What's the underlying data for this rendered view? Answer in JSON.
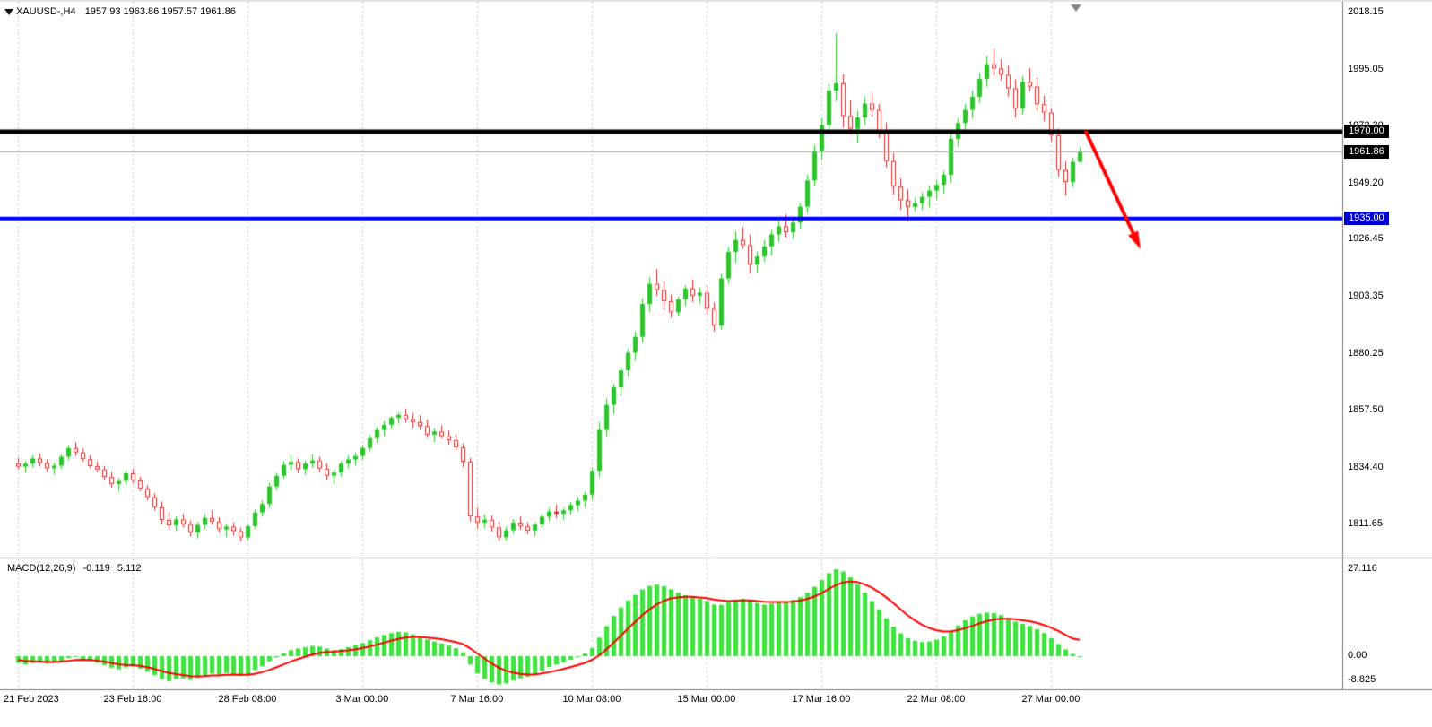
{
  "header": {
    "symbol": "XAUUSD-,H4",
    "ohlc": "1957.93 1963.86 1957.57 1961.86"
  },
  "chart_data": {
    "type": "candlestick",
    "symbol": "XAUUSD-",
    "timeframe": "H4",
    "current_price": 1961.86,
    "last_candle": {
      "open": 1957.93,
      "high": 1963.86,
      "low": 1957.57,
      "close": 1961.86
    },
    "shift_marker_index": 147.5,
    "price_axis": {
      "min": 1798.2,
      "max": 2022.5,
      "ticks": [
        {
          "label": "2018.15",
          "value": 2018.15
        },
        {
          "label": "1995.05",
          "value": 1995.05
        },
        {
          "label": "1972.30",
          "value": 1972.3
        },
        {
          "label": "1949.20",
          "value": 1949.2
        },
        {
          "label": "1926.45",
          "value": 1926.45
        },
        {
          "label": "1903.35",
          "value": 1903.35
        },
        {
          "label": "1880.25",
          "value": 1880.25
        },
        {
          "label": "1857.50",
          "value": 1857.5
        },
        {
          "label": "1834.40",
          "value": 1834.4
        },
        {
          "label": "1811.65",
          "value": 1811.65
        }
      ],
      "badges": [
        {
          "label": "1970.00",
          "value": 1970.0,
          "bg": "#000000"
        },
        {
          "label": "1961.86",
          "value": 1961.86,
          "bg": "#000000"
        },
        {
          "label": "1935.00",
          "value": 1935.0,
          "bg": "#0000CD"
        }
      ]
    },
    "horizontal_lines": [
      {
        "price": 1961.86,
        "color": "#A8A8A8",
        "width": 1,
        "role": "current-price-line"
      },
      {
        "price": 1970.0,
        "color": "#000000",
        "width": 5,
        "role": "resistance-line"
      },
      {
        "price": 1935.0,
        "color": "#0000FF",
        "width": 4,
        "role": "support-line"
      }
    ],
    "trend_arrow": {
      "from": {
        "index": 148.8,
        "price": 1970.5
      },
      "to": {
        "index": 155.8,
        "price": 1927.0
      },
      "color": "#FF0000",
      "width": 4
    },
    "x_axis": {
      "labels": [
        {
          "text": "21 Feb 2023",
          "index": 0
        },
        {
          "text": "23 Feb 16:00",
          "index": 16
        },
        {
          "text": "28 Feb 08:00",
          "index": 32
        },
        {
          "text": "3 Mar 00:00",
          "index": 48
        },
        {
          "text": "7 Mar 16:00",
          "index": 64
        },
        {
          "text": "10 Mar 08:00",
          "index": 80
        },
        {
          "text": "15 Mar 00:00",
          "index": 96
        },
        {
          "text": "17 Mar 16:00",
          "index": 112
        },
        {
          "text": "22 Mar 08:00",
          "index": 128
        },
        {
          "text": "27 Mar 00:00",
          "index": 144
        }
      ]
    },
    "colors": {
      "bull": "#2FC42F",
      "bear_border": "#E03232",
      "bear_fill": "#FFFFFF",
      "grid": "#C8C8C8",
      "macd_bar": "#3FE23F",
      "macd_signal": "#FF0000"
    },
    "candles": [
      [
        1836.2,
        1838.5,
        1833.8,
        1834.9
      ],
      [
        1834.9,
        1837.2,
        1832.5,
        1836.1
      ],
      [
        1836.1,
        1839.4,
        1834.6,
        1838.2
      ],
      [
        1838.2,
        1840.1,
        1835.0,
        1836.4
      ],
      [
        1836.4,
        1837.8,
        1832.9,
        1834.2
      ],
      [
        1834.2,
        1836.5,
        1831.7,
        1835.3
      ],
      [
        1835.3,
        1839.8,
        1834.1,
        1838.9
      ],
      [
        1838.9,
        1843.6,
        1837.5,
        1842.4
      ],
      [
        1842.4,
        1844.8,
        1839.2,
        1840.6
      ],
      [
        1840.6,
        1842.3,
        1836.8,
        1837.9
      ],
      [
        1837.9,
        1839.5,
        1834.3,
        1835.1
      ],
      [
        1835.1,
        1837.0,
        1832.6,
        1833.8
      ],
      [
        1833.8,
        1835.2,
        1829.4,
        1830.7
      ],
      [
        1830.7,
        1832.8,
        1826.5,
        1827.9
      ],
      [
        1827.9,
        1830.3,
        1824.8,
        1829.1
      ],
      [
        1829.1,
        1833.4,
        1827.6,
        1832.2
      ],
      [
        1832.2,
        1833.9,
        1828.1,
        1829.3
      ],
      [
        1829.3,
        1830.8,
        1824.9,
        1826.0
      ],
      [
        1826.0,
        1827.5,
        1821.3,
        1822.6
      ],
      [
        1822.6,
        1824.1,
        1817.2,
        1818.5
      ],
      [
        1818.5,
        1820.9,
        1811.8,
        1813.4
      ],
      [
        1813.4,
        1816.7,
        1809.5,
        1811.2
      ],
      [
        1811.2,
        1814.8,
        1808.9,
        1813.6
      ],
      [
        1813.6,
        1815.9,
        1810.4,
        1811.7
      ],
      [
        1811.7,
        1813.2,
        1806.8,
        1808.3
      ],
      [
        1808.3,
        1812.6,
        1805.9,
        1811.4
      ],
      [
        1811.4,
        1815.8,
        1809.7,
        1814.2
      ],
      [
        1814.2,
        1817.3,
        1811.6,
        1812.8
      ],
      [
        1812.8,
        1814.5,
        1808.2,
        1809.6
      ],
      [
        1809.6,
        1811.9,
        1806.4,
        1810.7
      ],
      [
        1810.7,
        1812.4,
        1807.1,
        1808.9
      ],
      [
        1808.9,
        1810.2,
        1804.8,
        1806.3
      ],
      [
        1806.3,
        1811.7,
        1805.2,
        1810.9
      ],
      [
        1810.9,
        1817.6,
        1809.8,
        1816.4
      ],
      [
        1816.4,
        1821.3,
        1814.7,
        1819.8
      ],
      [
        1819.8,
        1828.5,
        1818.2,
        1826.9
      ],
      [
        1826.9,
        1832.4,
        1825.3,
        1831.2
      ],
      [
        1831.2,
        1837.1,
        1829.8,
        1835.6
      ],
      [
        1835.6,
        1839.7,
        1833.4,
        1836.8
      ],
      [
        1836.8,
        1838.2,
        1832.1,
        1833.9
      ],
      [
        1833.9,
        1837.5,
        1831.6,
        1836.2
      ],
      [
        1836.2,
        1839.8,
        1834.5,
        1837.4
      ],
      [
        1837.4,
        1838.9,
        1832.7,
        1834.1
      ],
      [
        1834.1,
        1836.3,
        1829.5,
        1831.2
      ],
      [
        1831.2,
        1833.8,
        1827.9,
        1832.6
      ],
      [
        1832.6,
        1837.2,
        1830.8,
        1836.1
      ],
      [
        1836.1,
        1839.4,
        1834.2,
        1837.8
      ],
      [
        1837.8,
        1840.6,
        1835.3,
        1839.2
      ],
      [
        1839.2,
        1843.7,
        1837.6,
        1842.5
      ],
      [
        1842.5,
        1847.8,
        1841.3,
        1846.4
      ],
      [
        1846.4,
        1850.9,
        1844.6,
        1849.7
      ],
      [
        1849.7,
        1853.2,
        1847.1,
        1851.8
      ],
      [
        1851.8,
        1855.4,
        1849.9,
        1854.6
      ],
      [
        1854.6,
        1856.9,
        1852.3,
        1855.8
      ],
      [
        1855.8,
        1858.3,
        1852.7,
        1854.1
      ],
      [
        1854.1,
        1856.6,
        1850.4,
        1852.9
      ],
      [
        1852.9,
        1855.7,
        1849.8,
        1851.3
      ],
      [
        1851.3,
        1853.9,
        1846.5,
        1847.8
      ],
      [
        1847.8,
        1850.2,
        1844.9,
        1849.1
      ],
      [
        1849.1,
        1851.6,
        1846.3,
        1847.2
      ],
      [
        1847.2,
        1849.5,
        1843.8,
        1845.6
      ],
      [
        1845.6,
        1847.9,
        1841.2,
        1842.7
      ],
      [
        1842.7,
        1844.3,
        1834.6,
        1836.9
      ],
      [
        1836.9,
        1838.4,
        1812.7,
        1814.8
      ],
      [
        1814.8,
        1818.3,
        1809.9,
        1812.4
      ],
      [
        1812.4,
        1815.7,
        1810.2,
        1813.5
      ],
      [
        1813.5,
        1815.2,
        1808.7,
        1810.3
      ],
      [
        1810.3,
        1812.8,
        1804.9,
        1806.4
      ],
      [
        1806.4,
        1810.6,
        1805.1,
        1809.2
      ],
      [
        1809.2,
        1813.7,
        1807.8,
        1812.3
      ],
      [
        1812.3,
        1814.9,
        1809.4,
        1810.8
      ],
      [
        1810.8,
        1812.5,
        1807.6,
        1809.1
      ],
      [
        1809.1,
        1812.4,
        1806.9,
        1811.6
      ],
      [
        1811.6,
        1815.8,
        1810.2,
        1814.7
      ],
      [
        1814.7,
        1818.3,
        1812.9,
        1816.8
      ],
      [
        1816.8,
        1819.6,
        1814.1,
        1815.9
      ],
      [
        1815.9,
        1818.2,
        1813.4,
        1817.3
      ],
      [
        1817.3,
        1820.7,
        1815.6,
        1819.4
      ],
      [
        1819.4,
        1822.6,
        1816.8,
        1821.2
      ],
      [
        1821.2,
        1824.9,
        1818.3,
        1823.6
      ],
      [
        1823.6,
        1834.7,
        1821.4,
        1833.2
      ],
      [
        1833.2,
        1852.8,
        1830.6,
        1849.7
      ],
      [
        1849.7,
        1862.4,
        1846.9,
        1859.8
      ],
      [
        1859.8,
        1868.3,
        1856.2,
        1866.9
      ],
      [
        1866.9,
        1875.3,
        1863.4,
        1873.8
      ],
      [
        1873.8,
        1882.6,
        1871.2,
        1880.9
      ],
      [
        1880.9,
        1889.4,
        1877.6,
        1887.3
      ],
      [
        1887.3,
        1902.8,
        1885.1,
        1900.6
      ],
      [
        1900.6,
        1911.3,
        1897.4,
        1908.7
      ],
      [
        1908.7,
        1914.6,
        1903.8,
        1906.2
      ],
      [
        1906.2,
        1909.8,
        1898.4,
        1901.7
      ],
      [
        1901.7,
        1904.3,
        1894.9,
        1897.2
      ],
      [
        1897.2,
        1903.6,
        1895.8,
        1902.4
      ],
      [
        1902.4,
        1908.1,
        1899.7,
        1906.8
      ],
      [
        1906.8,
        1910.4,
        1901.3,
        1903.9
      ],
      [
        1903.9,
        1907.2,
        1900.6,
        1905.1
      ],
      [
        1905.1,
        1907.8,
        1896.3,
        1898.6
      ],
      [
        1898.6,
        1901.2,
        1889.4,
        1891.8
      ],
      [
        1891.8,
        1912.6,
        1890.3,
        1910.9
      ],
      [
        1910.9,
        1923.4,
        1908.7,
        1921.6
      ],
      [
        1921.6,
        1929.8,
        1917.2,
        1926.4
      ],
      [
        1926.4,
        1931.7,
        1922.8,
        1924.3
      ],
      [
        1924.3,
        1928.6,
        1912.9,
        1916.4
      ],
      [
        1916.4,
        1921.8,
        1913.2,
        1919.7
      ],
      [
        1919.7,
        1926.3,
        1917.5,
        1923.8
      ],
      [
        1923.8,
        1930.4,
        1920.1,
        1928.6
      ],
      [
        1928.6,
        1934.2,
        1925.7,
        1931.9
      ],
      [
        1931.9,
        1936.8,
        1927.4,
        1929.5
      ],
      [
        1929.5,
        1935.7,
        1926.8,
        1933.4
      ],
      [
        1933.4,
        1941.2,
        1930.6,
        1939.8
      ],
      [
        1939.8,
        1952.6,
        1937.3,
        1950.4
      ],
      [
        1950.4,
        1964.8,
        1947.9,
        1962.3
      ],
      [
        1962.3,
        1975.6,
        1958.7,
        1972.8
      ],
      [
        1972.8,
        1989.3,
        1969.4,
        1986.7
      ],
      [
        1986.7,
        2009.8,
        1982.4,
        1989.6
      ],
      [
        1989.6,
        1993.2,
        1971.8,
        1976.4
      ],
      [
        1976.4,
        1982.7,
        1968.9,
        1971.3
      ],
      [
        1971.3,
        1978.6,
        1965.4,
        1975.8
      ],
      [
        1975.8,
        1984.3,
        1972.6,
        1981.4
      ],
      [
        1981.4,
        1985.7,
        1976.2,
        1978.9
      ],
      [
        1978.9,
        1981.2,
        1967.5,
        1970.3
      ],
      [
        1970.3,
        1973.8,
        1955.6,
        1958.2
      ],
      [
        1958.2,
        1961.4,
        1944.7,
        1947.9
      ],
      [
        1947.9,
        1951.3,
        1938.6,
        1942.4
      ],
      [
        1942.4,
        1946.8,
        1934.0,
        1939.7
      ],
      [
        1939.7,
        1943.5,
        1937.8,
        1941.2
      ],
      [
        1941.2,
        1945.6,
        1938.4,
        1943.8
      ],
      [
        1943.8,
        1948.2,
        1939.6,
        1946.3
      ],
      [
        1946.3,
        1950.7,
        1942.9,
        1948.6
      ],
      [
        1948.6,
        1954.3,
        1945.2,
        1952.7
      ],
      [
        1952.7,
        1969.8,
        1949.4,
        1967.2
      ],
      [
        1967.2,
        1975.4,
        1963.8,
        1973.6
      ],
      [
        1973.6,
        1981.2,
        1970.4,
        1978.9
      ],
      [
        1978.9,
        1986.7,
        1975.3,
        1984.2
      ],
      [
        1984.2,
        1993.8,
        1981.6,
        1991.4
      ],
      [
        1991.4,
        2000.6,
        1988.2,
        1997.3
      ],
      [
        1997.3,
        2003.2,
        1992.8,
        1995.6
      ],
      [
        1995.6,
        1999.4,
        1990.7,
        1993.1
      ],
      [
        1993.1,
        1996.8,
        1984.3,
        1987.6
      ],
      [
        1987.6,
        1991.2,
        1975.8,
        1979.4
      ],
      [
        1979.4,
        1992.6,
        1976.9,
        1990.2
      ],
      [
        1990.2,
        1995.7,
        1986.4,
        1988.3
      ],
      [
        1988.3,
        1991.8,
        1978.6,
        1981.2
      ],
      [
        1981.2,
        1984.6,
        1974.3,
        1977.8
      ],
      [
        1977.8,
        1979.4,
        1966.2,
        1968.7
      ],
      [
        1968.7,
        1971.3,
        1951.8,
        1954.6
      ],
      [
        1954.6,
        1958.2,
        1944.3,
        1949.8
      ],
      [
        1949.8,
        1959.7,
        1947.6,
        1957.9
      ],
      [
        1957.93,
        1963.86,
        1957.57,
        1961.86
      ]
    ],
    "macd": {
      "name": "MACD(12,26,9)",
      "main_value": "-0.119",
      "signal_value": "5.112",
      "axis_ticks": [
        {
          "label": "27.116",
          "value": 27.116
        },
        {
          "label": "0.00",
          "value": 0
        },
        {
          "label": "-8.825",
          "value": -8.825
        }
      ],
      "histogram": [
        -2.1,
        -2.6,
        -2.2,
        -1.8,
        -2.3,
        -2.0,
        -1.4,
        -0.6,
        -0.2,
        -0.8,
        -1.5,
        -2.1,
        -2.8,
        -3.6,
        -4.1,
        -3.5,
        -3.2,
        -3.9,
        -4.8,
        -5.9,
        -7.2,
        -7.8,
        -7.1,
        -6.9,
        -7.4,
        -6.8,
        -5.9,
        -5.4,
        -5.8,
        -5.2,
        -5.5,
        -6.1,
        -5.6,
        -4.3,
        -3.1,
        -1.6,
        -0.4,
        0.9,
        1.9,
        2.4,
        2.8,
        3.2,
        3.0,
        2.4,
        1.9,
        2.2,
        2.8,
        3.4,
        4.1,
        5.0,
        5.9,
        6.6,
        7.2,
        7.6,
        7.4,
        6.8,
        6.1,
        5.2,
        4.6,
        4.0,
        3.3,
        2.5,
        1.2,
        -2.6,
        -5.4,
        -7.1,
        -8.2,
        -8.825,
        -8.5,
        -7.6,
        -6.9,
        -6.4,
        -5.6,
        -4.5,
        -3.4,
        -2.6,
        -1.9,
        -1.1,
        -0.3,
        0.8,
        2.6,
        5.8,
        9.4,
        12.6,
        15.2,
        17.4,
        19.1,
        20.8,
        21.9,
        22.3,
        21.8,
        20.9,
        19.8,
        19.0,
        18.4,
        17.9,
        17.2,
        16.1,
        16.0,
        16.8,
        17.6,
        17.9,
        17.4,
        16.6,
        16.1,
        16.4,
        16.9,
        17.1,
        17.6,
        18.4,
        19.8,
        21.6,
        23.8,
        25.9,
        27.116,
        26.4,
        24.6,
        22.3,
        19.8,
        17.2,
        14.6,
        11.8,
        9.2,
        7.1,
        5.6,
        4.8,
        4.4,
        4.6,
        5.2,
        6.2,
        7.8,
        9.6,
        11.2,
        12.4,
        13.2,
        13.6,
        13.4,
        12.8,
        11.9,
        10.8,
        10.1,
        9.4,
        8.4,
        7.2,
        5.6,
        3.8,
        2.1,
        0.7,
        -0.119
      ],
      "signal": [
        -1.2,
        -1.5,
        -1.6,
        -1.7,
        -1.8,
        -1.8,
        -1.7,
        -1.5,
        -1.2,
        -1.1,
        -1.2,
        -1.4,
        -1.7,
        -2.1,
        -2.5,
        -2.7,
        -2.8,
        -3.0,
        -3.4,
        -3.9,
        -4.6,
        -5.2,
        -5.6,
        -5.9,
        -6.2,
        -6.3,
        -6.2,
        -6.0,
        -6.0,
        -5.8,
        -5.7,
        -5.8,
        -5.8,
        -5.5,
        -5.0,
        -4.3,
        -3.5,
        -2.6,
        -1.7,
        -0.9,
        -0.2,
        0.5,
        1.0,
        1.3,
        1.4,
        1.6,
        1.8,
        2.1,
        2.5,
        3.0,
        3.6,
        4.2,
        4.8,
        5.4,
        5.8,
        6.0,
        6.0,
        5.8,
        5.6,
        5.3,
        4.9,
        4.4,
        3.8,
        2.5,
        0.9,
        -0.7,
        -2.2,
        -3.5,
        -4.5,
        -5.1,
        -5.5,
        -5.7,
        -5.7,
        -5.4,
        -5.0,
        -4.5,
        -4.0,
        -3.4,
        -2.8,
        -2.1,
        -1.2,
        0.2,
        2.0,
        4.1,
        6.3,
        8.5,
        10.6,
        12.7,
        14.5,
        16.1,
        17.2,
        18.0,
        18.3,
        18.5,
        18.5,
        18.3,
        18.1,
        17.7,
        17.4,
        17.2,
        17.3,
        17.4,
        17.4,
        17.2,
        17.0,
        16.9,
        16.9,
        16.9,
        17.0,
        17.3,
        17.8,
        18.6,
        19.6,
        20.9,
        22.1,
        23.0,
        23.3,
        23.1,
        22.4,
        21.4,
        20.0,
        18.4,
        16.6,
        14.7,
        12.8,
        11.2,
        9.8,
        8.8,
        8.1,
        7.7,
        7.7,
        8.1,
        8.7,
        9.4,
        10.2,
        10.9,
        11.4,
        11.7,
        11.7,
        11.5,
        11.2,
        10.9,
        10.4,
        9.7,
        8.9,
        7.9,
        6.7,
        5.5,
        5.112
      ]
    }
  }
}
